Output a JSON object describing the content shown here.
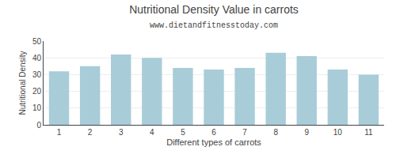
{
  "chart_data": {
    "type": "bar",
    "title": "Nutritional Density Value in carrots",
    "subtitle": "www.dietandfitnesstoday.com",
    "xlabel": "Different types of carrots",
    "ylabel": "Nutritional Density",
    "x": [
      1,
      2,
      3,
      4,
      5,
      6,
      7,
      8,
      9,
      10,
      11
    ],
    "values": [
      32,
      35,
      42,
      40,
      34,
      33,
      34,
      43,
      41,
      33,
      30
    ],
    "color": "#a8cdd8",
    "xlim": [
      0.5,
      11.5
    ],
    "xticks": [
      1,
      2,
      3,
      4,
      5,
      6,
      7,
      8,
      9,
      10,
      11
    ],
    "ylim": [
      0,
      50
    ],
    "yticks": [
      0,
      10,
      20,
      30,
      40,
      50
    ],
    "grid": true
  }
}
